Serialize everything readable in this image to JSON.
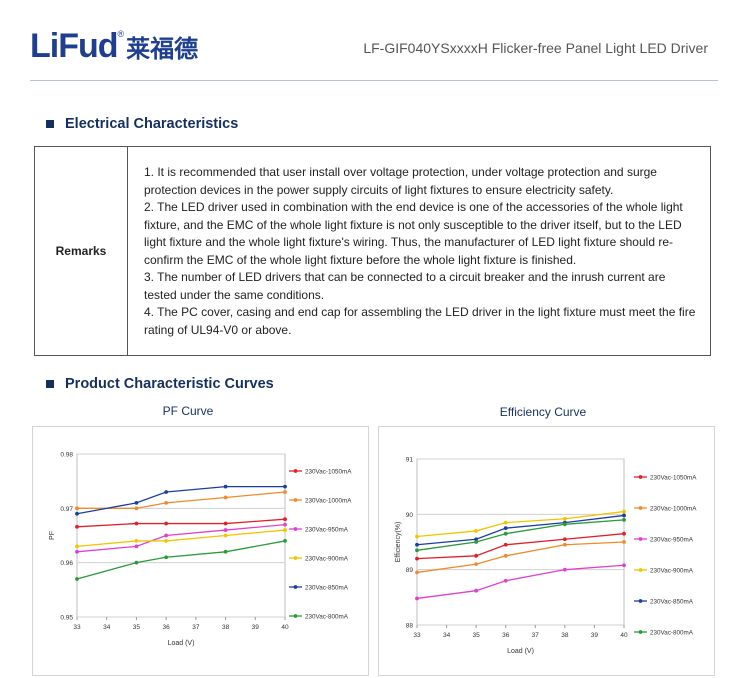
{
  "header": {
    "logo_text": "LiFud",
    "logo_reg": "®",
    "logo_cjk": "莱福德",
    "title": "LF-GIF040YSxxxxH  Flicker-free Panel Light LED Driver"
  },
  "electrical": {
    "heading": "Electrical Characteristics",
    "remarks_label": "Remarks",
    "remarks": [
      "1. It is recommended that user install over voltage protection, under voltage protection and surge protection devices in the power supply circuits of light fixtures to ensure electricity safety.",
      "2. The LED driver used in combination with the end device is one of the accessories of the whole light fixture, and the EMC of the whole light fixture is not only susceptible to the driver itself, but to the LED light fixture and the whole light fixture's wiring. Thus, the manufacturer of LED light fixture should re-confirm the EMC of the whole light fixture before the whole light fixture is finished.",
      "3. The number of LED drivers that can be connected to a circuit breaker and the inrush current are tested under the same conditions.",
      "4. The PC cover, casing and end cap for assembling the LED driver in the light fixture must meet the fire rating of UL94-V0 or above."
    ]
  },
  "curves": {
    "heading": "Product Characteristic Curves"
  },
  "chart_data": [
    {
      "type": "line",
      "title": "PF Curve",
      "xlabel": "Load (V)",
      "ylabel": "PF",
      "x": [
        33,
        35,
        36,
        38,
        40
      ],
      "xticks": [
        "33",
        "34",
        "35",
        "36",
        "37",
        "38",
        "39",
        "40"
      ],
      "yticks": [
        "0.95",
        "0.96",
        "0.97",
        "0.98"
      ],
      "xlim": [
        33,
        40
      ],
      "ylim": [
        0.95,
        0.98
      ],
      "grid": true,
      "legend": "right",
      "series": [
        {
          "name": "230Vac-1050mA",
          "color": "#e0202a",
          "values": [
            0.9666,
            0.9672,
            0.9672,
            0.9672,
            0.968
          ]
        },
        {
          "name": "230Vac-1000mA",
          "color": "#f08a2c",
          "values": [
            0.97,
            0.97,
            0.971,
            0.972,
            0.973
          ]
        },
        {
          "name": "230Vac-950mA",
          "color": "#e040d0",
          "values": [
            0.962,
            0.963,
            0.965,
            0.966,
            0.967
          ]
        },
        {
          "name": "230Vac-900mA",
          "color": "#f5c400",
          "values": [
            0.963,
            0.964,
            0.964,
            0.965,
            0.966
          ]
        },
        {
          "name": "230Vac-850mA",
          "color": "#1a3fa0",
          "values": [
            0.969,
            0.971,
            0.973,
            0.974,
            0.974
          ]
        },
        {
          "name": "230Vac-800mA",
          "color": "#2a9a3a",
          "values": [
            0.957,
            0.96,
            0.961,
            0.962,
            0.964
          ]
        }
      ]
    },
    {
      "type": "line",
      "title": "Efficiency Curve",
      "xlabel": "Load (V)",
      "ylabel": "Efficiency(%)",
      "x": [
        33,
        35,
        36,
        38,
        40
      ],
      "xticks": [
        "33",
        "34",
        "35",
        "36",
        "37",
        "38",
        "39",
        "40"
      ],
      "yticks": [
        "88",
        "89",
        "90",
        "91"
      ],
      "xlim": [
        33,
        40
      ],
      "ylim": [
        88,
        91
      ],
      "grid": true,
      "legend": "right",
      "series": [
        {
          "name": "230Vac-1050mA",
          "color": "#e0202a",
          "values": [
            89.2,
            89.25,
            89.45,
            89.55,
            89.65
          ]
        },
        {
          "name": "230Vac-1000mA",
          "color": "#f08a2c",
          "values": [
            88.95,
            89.1,
            89.25,
            89.45,
            89.5
          ]
        },
        {
          "name": "230Vac-950mA",
          "color": "#e040d0",
          "values": [
            88.48,
            88.62,
            88.8,
            89.0,
            89.08
          ]
        },
        {
          "name": "230Vac-900mA",
          "color": "#f5c400",
          "values": [
            89.6,
            89.7,
            89.85,
            89.92,
            90.05
          ]
        },
        {
          "name": "230Vac-850mA",
          "color": "#1a3fa0",
          "values": [
            89.45,
            89.55,
            89.75,
            89.85,
            89.98
          ]
        },
        {
          "name": "230Vac-800mA",
          "color": "#2a9a3a",
          "values": [
            89.35,
            89.5,
            89.65,
            89.82,
            89.9
          ]
        }
      ]
    }
  ]
}
